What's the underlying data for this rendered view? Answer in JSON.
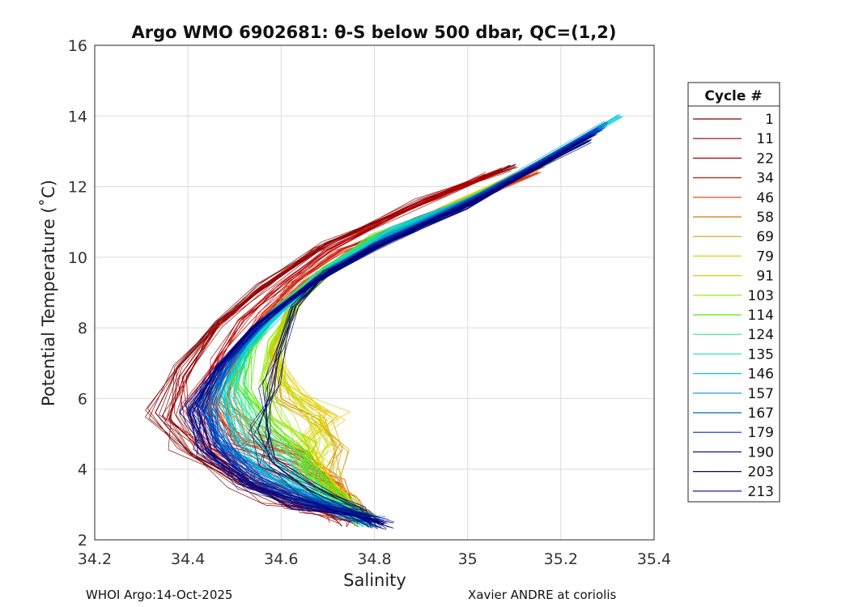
{
  "chart_data": {
    "type": "line",
    "title": "Argo WMO 6902681: θ-S below 500 dbar,  QC=(1,2)",
    "xlabel": "Salinity",
    "ylabel": "Potential Temperature (˚C)",
    "xlim": [
      34.2,
      35.4
    ],
    "ylim": [
      2,
      16
    ],
    "xticks": [
      "34.2",
      "34.4",
      "34.6",
      "34.8",
      "35",
      "35.2",
      "35.4"
    ],
    "yticks": [
      "2",
      "4",
      "6",
      "8",
      "10",
      "12",
      "14",
      "16"
    ],
    "grid": true,
    "legend": {
      "title": "Cycle #",
      "placement": "right-outside",
      "entries": [
        {
          "label": "1",
          "color": "#800000"
        },
        {
          "label": "11",
          "color": "#990000"
        },
        {
          "label": "22",
          "color": "#b30000"
        },
        {
          "label": "34",
          "color": "#cc1a00"
        },
        {
          "label": "46",
          "color": "#e03a00"
        },
        {
          "label": "58",
          "color": "#cc7a00"
        },
        {
          "label": "69",
          "color": "#d6a000"
        },
        {
          "label": "79",
          "color": "#e6cc00"
        },
        {
          "label": "91",
          "color": "#ccd900"
        },
        {
          "label": "103",
          "color": "#99e600"
        },
        {
          "label": "114",
          "color": "#55e600"
        },
        {
          "label": "124",
          "color": "#33e680"
        },
        {
          "label": "135",
          "color": "#2ee6c0"
        },
        {
          "label": "146",
          "color": "#00ccdd"
        },
        {
          "label": "157",
          "color": "#0099cc"
        },
        {
          "label": "167",
          "color": "#0066cc"
        },
        {
          "label": "179",
          "color": "#0033bb"
        },
        {
          "label": "190",
          "color": "#001a99"
        },
        {
          "label": "203",
          "color": "#000d66"
        },
        {
          "label": "213",
          "color": "#000080"
        }
      ]
    },
    "series": [
      {
        "name": "1",
        "x": [
          35.1,
          34.95,
          34.7,
          34.56,
          34.47,
          34.38,
          34.33,
          34.4,
          34.52,
          34.6,
          34.68,
          34.75
        ],
        "y": [
          12.6,
          11.8,
          10.4,
          9.2,
          8.2,
          6.9,
          5.6,
          4.5,
          3.6,
          3.1,
          2.8,
          2.5
        ]
      },
      {
        "name": "11",
        "x": [
          35.08,
          34.9,
          34.68,
          34.55,
          34.46,
          34.39,
          34.36,
          34.45,
          34.55,
          34.65,
          34.73,
          34.77
        ],
        "y": [
          12.5,
          11.6,
          10.2,
          9.0,
          8.0,
          6.6,
          5.4,
          4.3,
          3.5,
          3.0,
          2.7,
          2.5
        ]
      },
      {
        "name": "22",
        "x": [
          35.05,
          34.85,
          34.7,
          34.6,
          34.52,
          34.46,
          34.42,
          34.45,
          34.55,
          34.66,
          34.74,
          34.78
        ],
        "y": [
          12.4,
          11.2,
          10.2,
          9.2,
          8.2,
          7.1,
          5.8,
          4.6,
          3.8,
          3.2,
          2.8,
          2.5
        ]
      },
      {
        "name": "34",
        "x": [
          35.12,
          34.9,
          34.73,
          34.63,
          34.56,
          34.5,
          34.45,
          34.5,
          34.62,
          34.7,
          34.72,
          34.74
        ],
        "y": [
          12.3,
          11.1,
          10.2,
          9.3,
          8.4,
          7.3,
          5.9,
          4.7,
          4.1,
          3.6,
          3.0,
          2.6
        ]
      },
      {
        "name": "46",
        "x": [
          35.15,
          34.92,
          34.75,
          34.65,
          34.57,
          34.51,
          34.46,
          34.52,
          34.64,
          34.7,
          34.74,
          34.77
        ],
        "y": [
          12.4,
          11.1,
          10.2,
          9.3,
          8.4,
          7.3,
          5.9,
          4.8,
          4.4,
          3.6,
          3.0,
          2.6
        ]
      },
      {
        "name": "58",
        "x": [
          35.16,
          34.93,
          34.76,
          34.66,
          34.58,
          34.52,
          34.48,
          34.55,
          34.64,
          34.7,
          34.74,
          34.78
        ],
        "y": [
          12.6,
          11.2,
          10.2,
          9.3,
          8.4,
          7.3,
          6.0,
          5.0,
          4.5,
          3.7,
          3.1,
          2.6
        ]
      },
      {
        "name": "69",
        "x": [
          35.17,
          34.95,
          34.79,
          34.69,
          34.62,
          34.58,
          34.6,
          34.68,
          34.72,
          34.7,
          34.73,
          34.77
        ],
        "y": [
          12.7,
          11.4,
          10.5,
          9.6,
          8.6,
          7.3,
          6.0,
          5.4,
          4.6,
          3.8,
          3.1,
          2.6
        ]
      },
      {
        "name": "79",
        "x": [
          35.18,
          34.96,
          34.8,
          34.7,
          34.62,
          34.58,
          34.62,
          34.72,
          34.66,
          34.7,
          34.74,
          34.78
        ],
        "y": [
          12.8,
          11.4,
          10.5,
          9.7,
          8.7,
          7.4,
          6.2,
          5.5,
          4.8,
          3.8,
          3.2,
          2.6
        ]
      },
      {
        "name": "91",
        "x": [
          35.18,
          34.97,
          34.82,
          34.72,
          34.64,
          34.6,
          34.6,
          34.66,
          34.7,
          34.66,
          34.72,
          34.77
        ],
        "y": [
          12.8,
          11.5,
          10.6,
          9.8,
          8.8,
          7.6,
          6.5,
          5.6,
          4.7,
          3.9,
          3.1,
          2.6
        ]
      },
      {
        "name": "103",
        "x": [
          35.19,
          34.98,
          34.83,
          34.72,
          34.64,
          34.58,
          34.56,
          34.6,
          34.66,
          34.64,
          34.72,
          34.78
        ],
        "y": [
          12.9,
          11.5,
          10.7,
          9.8,
          8.8,
          7.6,
          6.5,
          5.4,
          4.6,
          3.8,
          3.1,
          2.5
        ]
      },
      {
        "name": "114",
        "x": [
          35.18,
          34.96,
          34.8,
          34.7,
          34.6,
          34.54,
          34.52,
          34.58,
          34.64,
          34.68,
          34.73,
          34.78
        ],
        "y": [
          12.8,
          11.4,
          10.6,
          9.7,
          8.6,
          7.5,
          6.4,
          5.2,
          4.4,
          3.7,
          3.0,
          2.5
        ]
      },
      {
        "name": "124",
        "x": [
          35.15,
          34.95,
          34.79,
          34.68,
          34.59,
          34.52,
          34.5,
          34.55,
          34.63,
          34.67,
          34.73,
          34.78
        ],
        "y": [
          12.6,
          11.3,
          10.5,
          9.6,
          8.5,
          7.4,
          6.3,
          5.1,
          4.3,
          3.6,
          3.0,
          2.5
        ]
      },
      {
        "name": "135",
        "x": [
          35.25,
          35.0,
          34.82,
          34.71,
          34.61,
          34.53,
          34.48,
          34.52,
          34.6,
          34.66,
          34.73,
          34.78
        ],
        "y": [
          13.3,
          11.6,
          10.6,
          9.7,
          8.6,
          7.5,
          6.2,
          5.0,
          4.1,
          3.4,
          2.9,
          2.5
        ]
      },
      {
        "name": "146",
        "x": [
          35.33,
          35.05,
          34.84,
          34.72,
          34.62,
          34.53,
          34.47,
          34.5,
          34.58,
          34.66,
          34.74,
          34.79
        ],
        "y": [
          14.0,
          11.9,
          10.8,
          9.8,
          8.7,
          7.5,
          6.2,
          4.9,
          4.0,
          3.3,
          2.8,
          2.5
        ]
      },
      {
        "name": "157",
        "x": [
          35.3,
          35.03,
          34.83,
          34.71,
          34.6,
          34.51,
          34.45,
          34.48,
          34.56,
          34.65,
          34.74,
          34.79
        ],
        "y": [
          13.8,
          11.8,
          10.6,
          9.7,
          8.6,
          7.3,
          6.0,
          4.8,
          3.9,
          3.3,
          2.8,
          2.5
        ]
      },
      {
        "name": "167",
        "x": [
          35.29,
          35.02,
          34.82,
          34.7,
          34.58,
          34.5,
          34.44,
          34.47,
          34.55,
          34.65,
          34.75,
          34.8
        ],
        "y": [
          13.7,
          11.7,
          10.5,
          9.6,
          8.4,
          7.2,
          5.9,
          4.7,
          3.8,
          3.2,
          2.8,
          2.5
        ]
      },
      {
        "name": "179",
        "x": [
          35.28,
          35.01,
          34.81,
          34.68,
          34.56,
          34.48,
          34.43,
          34.46,
          34.54,
          34.65,
          34.76,
          34.81
        ],
        "y": [
          13.6,
          11.6,
          10.4,
          9.4,
          8.2,
          7.0,
          5.8,
          4.6,
          3.7,
          3.1,
          2.7,
          2.5
        ]
      },
      {
        "name": "190",
        "x": [
          35.27,
          35.0,
          34.8,
          34.67,
          34.55,
          34.47,
          34.42,
          34.45,
          34.53,
          34.64,
          34.76,
          34.82
        ],
        "y": [
          13.5,
          11.5,
          10.3,
          9.3,
          8.1,
          6.9,
          5.7,
          4.5,
          3.6,
          3.1,
          2.7,
          2.45
        ]
      },
      {
        "name": "203",
        "x": [
          35.26,
          35.0,
          34.8,
          34.7,
          34.63,
          34.6,
          34.58,
          34.55,
          34.58,
          34.66,
          34.76,
          34.82
        ],
        "y": [
          13.3,
          11.5,
          10.3,
          9.6,
          8.6,
          7.4,
          6.3,
          5.1,
          4.2,
          3.4,
          2.8,
          2.45
        ]
      },
      {
        "name": "213",
        "x": [
          35.26,
          34.99,
          34.79,
          34.66,
          34.54,
          34.46,
          34.41,
          34.44,
          34.52,
          34.64,
          34.76,
          34.82
        ],
        "y": [
          13.4,
          11.4,
          10.2,
          9.2,
          8.0,
          6.8,
          5.6,
          4.5,
          3.6,
          3.0,
          2.7,
          2.45
        ]
      }
    ]
  },
  "footer": {
    "left": "WHOI Argo:14-Oct-2025",
    "right": "Xavier ANDRE at coriolis"
  }
}
